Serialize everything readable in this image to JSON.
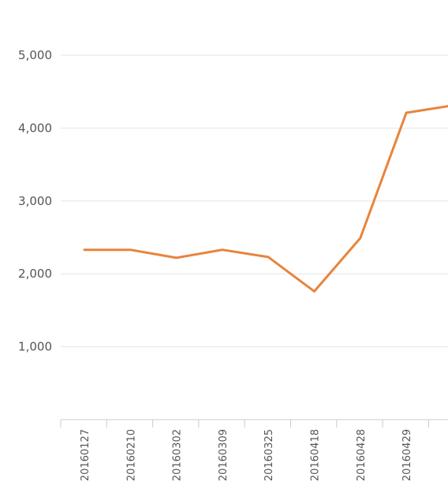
{
  "chart_data": {
    "type": "line",
    "title": "",
    "xlabel": "",
    "ylabel": "",
    "categories": [
      "20160127",
      "20160210",
      "20160302",
      "20160309",
      "20160325",
      "20160418",
      "20160428",
      "20160429",
      ""
    ],
    "series": [
      {
        "values": [
          2330,
          2330,
          2220,
          2330,
          2230,
          1760,
          2490,
          4210,
          4310
        ],
        "color": "#e8843c"
      }
    ],
    "ylim": [
      0,
      5000
    ],
    "yticks": [
      1000,
      2000,
      3000,
      4000,
      5000
    ],
    "ytick_labels": [
      "1,000",
      "2,000",
      "3,000",
      "4,000",
      "5,000"
    ],
    "grid": true,
    "legend": "none"
  }
}
